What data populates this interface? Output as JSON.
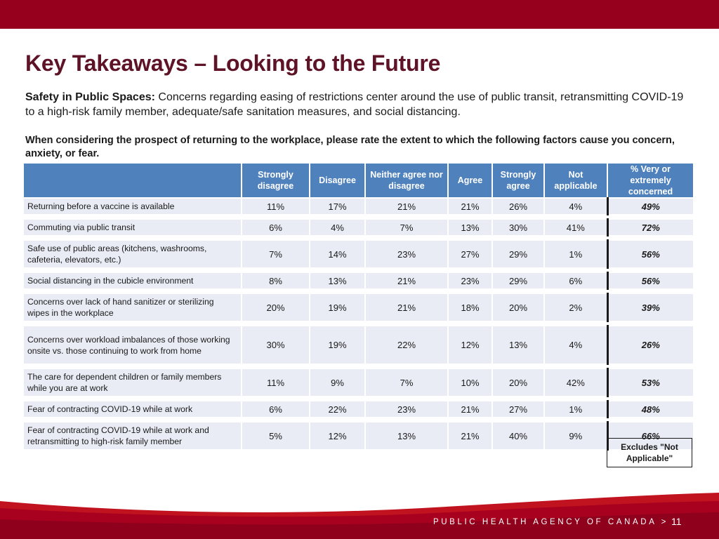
{
  "slide": {
    "title": "Key Takeaways – Looking to the Future",
    "intro_label": "Safety in Public Spaces:",
    "intro_text": " Concerns regarding easing of restrictions center around the use of public transit, retransmitting COVID-19 to a high-risk family member, adequate/safe sanitation measures, and social distancing.",
    "question": "When considering the prospect of returning to the workplace, please rate the extent to which the following factors cause you concern, anxiety, or fear."
  },
  "table": {
    "headers": [
      "Strongly disagree",
      "Disagree",
      "Neither agree nor disagree",
      "Agree",
      "Strongly agree",
      "Not applicable",
      "% Very or extremely concerned"
    ],
    "rows": [
      {
        "factor": "Returning before a vaccine is available",
        "values": [
          "11%",
          "17%",
          "21%",
          "21%",
          "26%",
          "4%"
        ],
        "concerned": "49%"
      },
      {
        "factor": "Commuting via public transit",
        "values": [
          "6%",
          "4%",
          "7%",
          "13%",
          "30%",
          "41%"
        ],
        "concerned": "72%"
      },
      {
        "factor": "Safe use of public areas (kitchens, washrooms, cafeteria, elevators, etc.)",
        "values": [
          "7%",
          "14%",
          "23%",
          "27%",
          "29%",
          "1%"
        ],
        "concerned": "56%"
      },
      {
        "factor": "Social distancing in the cubicle environment",
        "values": [
          "8%",
          "13%",
          "21%",
          "23%",
          "29%",
          "6%"
        ],
        "concerned": "56%"
      },
      {
        "factor": "Concerns over lack of hand sanitizer or sterilizing wipes in the workplace",
        "values": [
          "20%",
          "19%",
          "21%",
          "18%",
          "20%",
          "2%"
        ],
        "concerned": "39%"
      },
      {
        "factor": "Concerns over workload imbalances of those working onsite vs. those continuing to work from home",
        "values": [
          "30%",
          "19%",
          "22%",
          "12%",
          "13%",
          "4%"
        ],
        "concerned": "26%"
      },
      {
        "factor": "The care for dependent children or family members while you are at work",
        "values": [
          "11%",
          "9%",
          "7%",
          "10%",
          "20%",
          "42%"
        ],
        "concerned": "53%"
      },
      {
        "factor": "Fear of contracting COVID-19 while at work",
        "values": [
          "6%",
          "22%",
          "23%",
          "21%",
          "27%",
          "1%"
        ],
        "concerned": "48%"
      },
      {
        "factor": "Fear of contracting COVID-19 while at work and retransmitting to high-risk family member",
        "values": [
          "5%",
          "12%",
          "13%",
          "21%",
          "40%",
          "9%"
        ],
        "concerned": "66%"
      }
    ]
  },
  "note": "Excludes \"Not Applicable\"",
  "footer": {
    "agency": "PUBLIC HEALTH AGENCY OF CANADA >",
    "page_number": "11"
  },
  "colors": {
    "brand_red": "#97001c",
    "title_maroon": "#5e1327",
    "header_blue": "#4f81bd",
    "row_bg": "#e9ecf4"
  }
}
